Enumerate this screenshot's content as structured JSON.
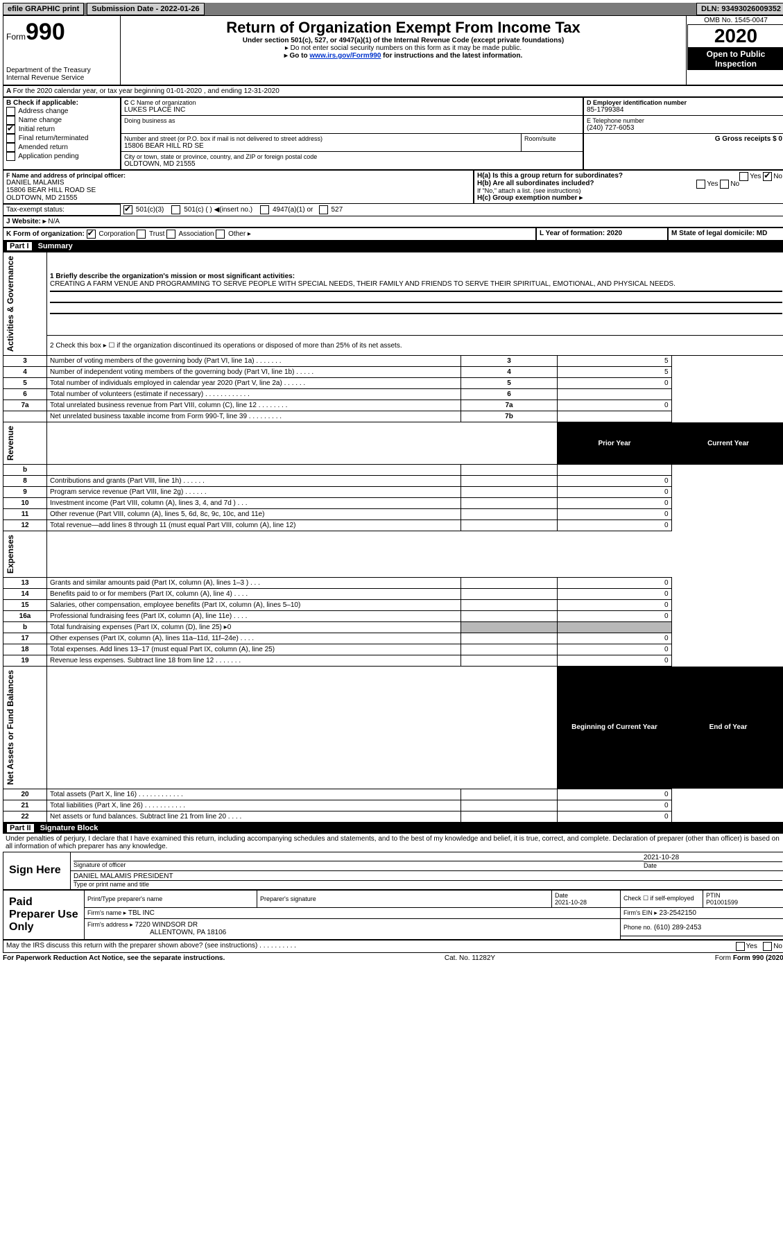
{
  "topbar": {
    "efile": "efile GRAPHIC print",
    "submission": "Submission Date - 2022-01-26",
    "dln": "DLN: 93493026009352"
  },
  "header": {
    "form_word": "Form",
    "form_num": "990",
    "dept": "Department of the Treasury\nInternal Revenue Service",
    "title": "Return of Organization Exempt From Income Tax",
    "subtitle": "Under section 501(c), 527, or 4947(a)(1) of the Internal Revenue Code (except private foundations)",
    "note1": "▸ Do not enter social security numbers on this form as it may be made public.",
    "note2_pre": "▸ Go to ",
    "note2_link": "www.irs.gov/Form990",
    "note2_post": " for instructions and the latest information.",
    "omb": "OMB No. 1545-0047",
    "year": "2020",
    "pub": "Open to Public Inspection"
  },
  "line_a": "For the 2020 calendar year, or tax year beginning 01-01-2020  , and ending 12-31-2020",
  "box_b": {
    "label": "B Check if applicable:",
    "items": [
      {
        "label": "Address change",
        "checked": false
      },
      {
        "label": "Name change",
        "checked": false
      },
      {
        "label": "Initial return",
        "checked": true
      },
      {
        "label": "Final return/terminated",
        "checked": false
      },
      {
        "label": "Amended return",
        "checked": false
      },
      {
        "label": "Application pending",
        "checked": false
      }
    ]
  },
  "box_c": {
    "label": "C Name of organization",
    "name": "LUKES PLACE INC",
    "dba_label": "Doing business as",
    "addr_label": "Number and street (or P.O. box if mail is not delivered to street address)",
    "room_label": "Room/suite",
    "addr": "15806 BEAR HILL RD SE",
    "city_label": "City or town, state or province, country, and ZIP or foreign postal code",
    "city": "OLDTOWN, MD  21555"
  },
  "box_d": {
    "label": "D Employer identification number",
    "value": "85-1799384"
  },
  "box_e": {
    "label": "E Telephone number",
    "value": "(240) 727-6053"
  },
  "box_g": {
    "label": "G Gross receipts $ 0"
  },
  "box_f": {
    "label": "F  Name and address of principal officer:",
    "name": "DANIEL MALAMIS",
    "addr1": "15806 BEAR HILL ROAD SE",
    "addr2": "OLDTOWN, MD  21555"
  },
  "box_h": {
    "a_label": "H(a)  Is this a group return for subordinates?",
    "b_label": "H(b)  Are all subordinates included?",
    "note": "If \"No,\" attach a list. (see instructions)",
    "c_label": "H(c)  Group exemption number ▸"
  },
  "tax_exempt": {
    "label": "Tax-exempt status:",
    "c3": "501(c)(3)",
    "c_other": "501(c) (  ) ◀(insert no.)",
    "a1": "4947(a)(1) or",
    "s527": "527"
  },
  "line_j": {
    "label": "J   Website: ▸",
    "value": "N/A"
  },
  "line_k": {
    "label": "K Form of organization:",
    "corp": "Corporation",
    "trust": "Trust",
    "assoc": "Association",
    "other": "Other ▸"
  },
  "line_l": {
    "label": "L Year of formation: 2020"
  },
  "line_m": {
    "label": "M State of legal domicile: MD"
  },
  "part1": {
    "bar": "Summary",
    "bar_label": "Part I",
    "vert1": "Activities & Governance",
    "vert2": "Revenue",
    "vert3": "Expenses",
    "vert4": "Net Assets or Fund Balances",
    "line1_label": "1  Briefly describe the organization's mission or most significant activities:",
    "line1_text": "CREATING A FARM VENUE AND PROGRAMMING TO SERVE PEOPLE WITH SPECIAL NEEDS, THEIR FAMILY AND FRIENDS TO SERVE THEIR SPIRITUAL, EMOTIONAL, AND PHYSICAL NEEDS.",
    "line2": "2   Check this box ▸ ☐  if the organization discontinued its operations or disposed of more than 25% of its net assets.",
    "rows_gov": [
      {
        "n": "3",
        "text": "Number of voting members of the governing body (Part VI, line 1a)   .    .    .    .    .    .    .",
        "box": "3",
        "val": "5"
      },
      {
        "n": "4",
        "text": "Number of independent voting members of the governing body (Part VI, line 1b)   .    .    .    .    .",
        "box": "4",
        "val": "5"
      },
      {
        "n": "5",
        "text": "Total number of individuals employed in calendar year 2020 (Part V, line 2a)  .    .    .    .    .    .",
        "box": "5",
        "val": "0"
      },
      {
        "n": "6",
        "text": "Total number of volunteers (estimate if necessary)    .    .    .    .    .    .    .    .    .    .    .    .",
        "box": "6",
        "val": ""
      },
      {
        "n": "7a",
        "text": "Total unrelated business revenue from Part VIII, column (C), line 12   .    .    .    .    .    .    .    .",
        "box": "7a",
        "val": "0"
      },
      {
        "n": "",
        "text": "Net unrelated business taxable income from Form 990-T, line 39   .    .    .    .    .    .    .    .    .",
        "box": "7b",
        "val": ""
      }
    ],
    "col_prior": "Prior Year",
    "col_current": "Current Year",
    "col_begin": "Beginning of Current Year",
    "col_end": "End of Year",
    "rows_rev": [
      {
        "n": "b",
        "text": "",
        "p": "",
        "c": ""
      },
      {
        "n": "8",
        "text": "Contributions and grants (Part VIII, line 1h)   .    .    .    .    .    .",
        "p": "",
        "c": "0"
      },
      {
        "n": "9",
        "text": "Program service revenue (Part VIII, line 2g)   .    .    .    .    .    .",
        "p": "",
        "c": "0"
      },
      {
        "n": "10",
        "text": "Investment income (Part VIII, column (A), lines 3, 4, and 7d )    .    .    .",
        "p": "",
        "c": "0"
      },
      {
        "n": "11",
        "text": "Other revenue (Part VIII, column (A), lines 5, 6d, 8c, 9c, 10c, and 11e)",
        "p": "",
        "c": "0"
      },
      {
        "n": "12",
        "text": "Total revenue—add lines 8 through 11 (must equal Part VIII, column (A), line 12)",
        "p": "",
        "c": "0"
      }
    ],
    "rows_exp": [
      {
        "n": "13",
        "text": "Grants and similar amounts paid (Part IX, column (A), lines 1–3 )  .    .    .",
        "p": "",
        "c": "0"
      },
      {
        "n": "14",
        "text": "Benefits paid to or for members (Part IX, column (A), line 4)  .    .    .    .",
        "p": "",
        "c": "0"
      },
      {
        "n": "15",
        "text": "Salaries, other compensation, employee benefits (Part IX, column (A), lines 5–10)",
        "p": "",
        "c": "0"
      },
      {
        "n": "16a",
        "text": "Professional fundraising fees (Part IX, column (A), line 11e)  .    .    .    .",
        "p": "",
        "c": "0"
      },
      {
        "n": "b",
        "text": "Total fundraising expenses (Part IX, column (D), line 25) ▸0",
        "p": "gray",
        "c": "gray"
      },
      {
        "n": "17",
        "text": "Other expenses (Part IX, column (A), lines 11a–11d, 11f–24e)  .    .    .    .",
        "p": "",
        "c": "0"
      },
      {
        "n": "18",
        "text": "Total expenses. Add lines 13–17 (must equal Part IX, column (A), line 25)",
        "p": "",
        "c": "0"
      },
      {
        "n": "19",
        "text": "Revenue less expenses. Subtract line 18 from line 12 .    .    .    .    .    .    .",
        "p": "",
        "c": "0"
      }
    ],
    "rows_net": [
      {
        "n": "20",
        "text": "Total assets (Part X, line 16)  .    .    .    .    .    .    .    .    .    .    .    .",
        "p": "",
        "c": "0"
      },
      {
        "n": "21",
        "text": "Total liabilities (Part X, line 26)  .    .    .    .    .    .    .    .    .    .    .",
        "p": "",
        "c": "0"
      },
      {
        "n": "22",
        "text": "Net assets or fund balances. Subtract line 21 from line 20   .    .    .    .",
        "p": "",
        "c": "0"
      }
    ]
  },
  "part2": {
    "bar_label": "Part II",
    "bar": "Signature Block",
    "decl": "Under penalties of perjury, I declare that I have examined this return, including accompanying schedules and statements, and to the best of my knowledge and belief, it is true, correct, and complete. Declaration of preparer (other than officer) is based on all information of which preparer has any knowledge.",
    "sign_here": "Sign Here",
    "sig_label": "Signature of officer",
    "date_label": "Date",
    "sig_date": "2021-10-28",
    "sig_name": "DANIEL MALAMIS  PRESIDENT",
    "sig_type": "Type or print name and title",
    "paid": "Paid Preparer Use Only",
    "prep_name_label": "Print/Type preparer's name",
    "prep_sig_label": "Preparer's signature",
    "prep_date": "2021-10-28",
    "prep_check": "Check ☐  if self-employed",
    "ptin_label": "PTIN",
    "ptin": "P01001599",
    "firm_name_label": "Firm's name    ▸",
    "firm_name": "TBL INC",
    "firm_ein_label": "Firm's EIN ▸",
    "firm_ein": "23-2542150",
    "firm_addr_label": "Firm's address ▸",
    "firm_addr1": "7220 WINDSOR DR",
    "firm_addr2": "ALLENTOWN, PA  18106",
    "phone_label": "Phone no.",
    "phone": "(610) 289-2453",
    "discuss": "May the IRS discuss this return with the preparer shown above? (see instructions)    .    .    .    .    .    .    .    .    .    .",
    "yes": "Yes",
    "no": "No"
  },
  "footer": {
    "pra": "For Paperwork Reduction Act Notice, see the separate instructions.",
    "cat": "Cat. No. 11282Y",
    "form": "Form 990 (2020)"
  }
}
